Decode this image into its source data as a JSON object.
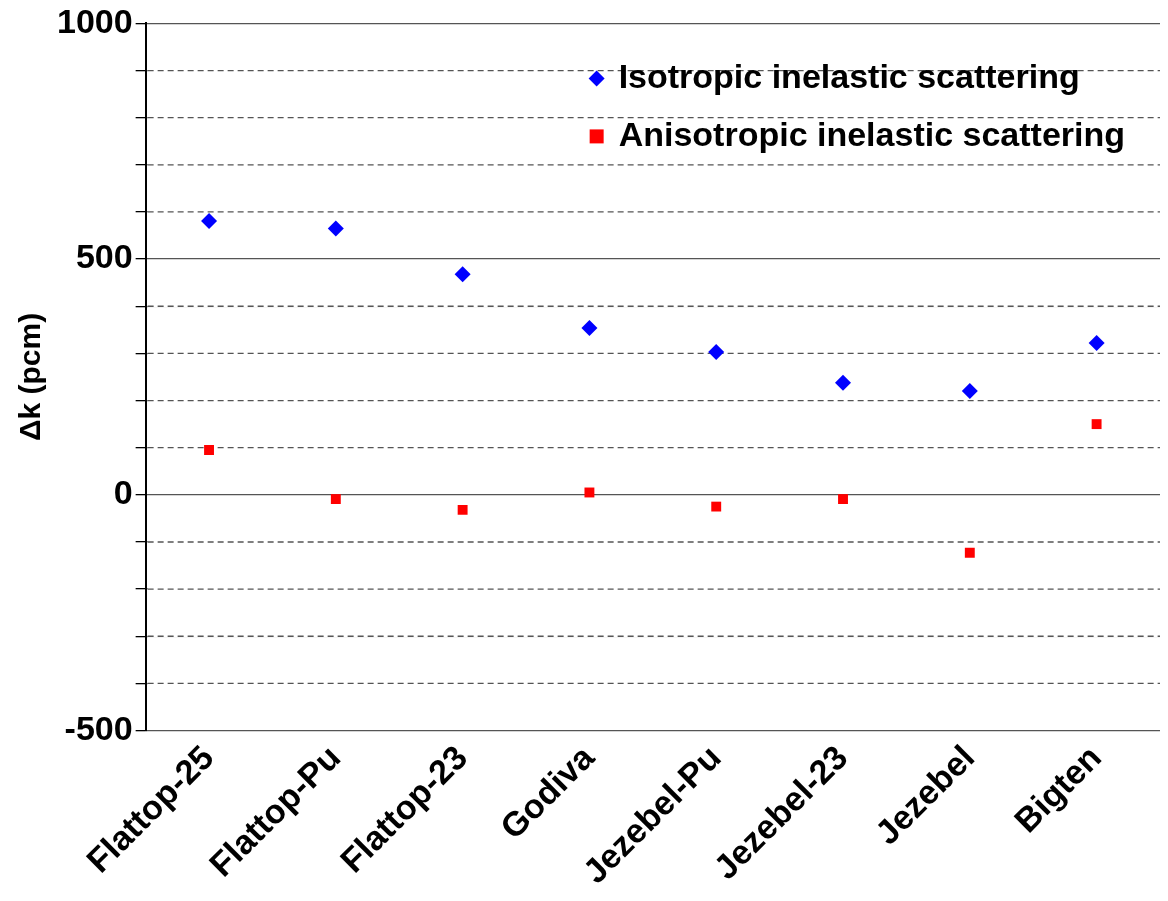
{
  "chart_data": {
    "type": "scatter",
    "ylabel": "Δk (pcm)",
    "categories": [
      "Flattop-25",
      "Flattop-Pu",
      "Flattop-23",
      "Godiva",
      "Jezebel-Pu",
      "Jezebel-23",
      "Jezebel",
      "Bigten"
    ],
    "series": [
      {
        "name": "Isotropic inelastic scattering",
        "color": "#0000ff",
        "marker": "diamond",
        "values": [
          581,
          565,
          468,
          354,
          303,
          238,
          220,
          322
        ]
      },
      {
        "name": "Anisotropic inelastic scattering",
        "color": "#ff0000",
        "marker": "square",
        "values": [
          95,
          -9,
          -32,
          5,
          -25,
          -9,
          -123,
          150
        ]
      }
    ],
    "ylim": [
      -500,
      1000
    ],
    "yticks": [
      -500,
      {
        "value": -400,
        "label": null
      },
      {
        "value": -300,
        "label": null
      },
      {
        "value": -200,
        "label": null
      },
      {
        "value": -100,
        "label": null
      },
      0,
      {
        "value": 100,
        "label": null
      },
      {
        "value": 200,
        "label": null
      },
      {
        "value": 300,
        "label": null
      },
      {
        "value": 400,
        "label": null
      },
      500,
      {
        "value": 600,
        "label": null
      },
      {
        "value": 700,
        "label": null
      },
      {
        "value": 800,
        "label": null
      },
      {
        "value": 900,
        "label": null
      },
      1000
    ],
    "grid": "y",
    "legend": "top right"
  }
}
